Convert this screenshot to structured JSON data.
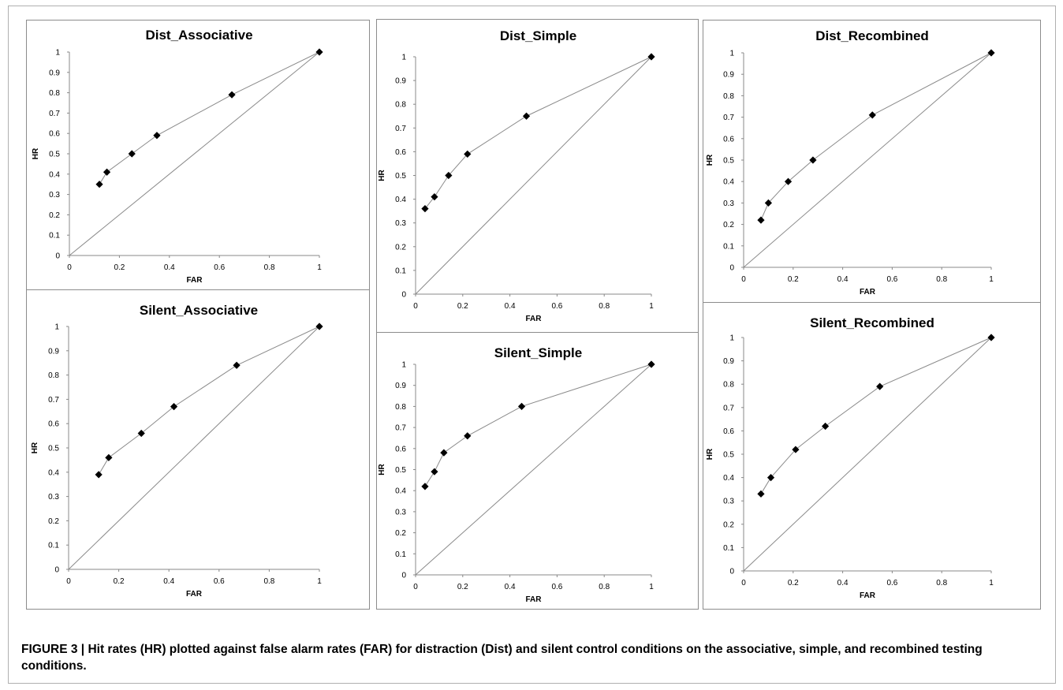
{
  "figure": {
    "caption_label": "FIGURE 3 | ",
    "caption_text": "Hit rates (HR) plotted against false alarm rates (FAR) for distraction (Dist) and silent control conditions on the associative, simple, and recombined testing conditions."
  },
  "chart_data": [
    {
      "type": "line",
      "title": "Dist_Associative",
      "xlabel": "FAR",
      "ylabel": "HR",
      "xlim": [
        0,
        1
      ],
      "ylim": [
        0,
        1
      ],
      "xticks": [
        "0",
        "0.2",
        "0.4",
        "0.6",
        "0.8",
        "1"
      ],
      "yticks": [
        "0",
        "0.1",
        "0.2",
        "0.3",
        "0.4",
        "0.5",
        "0.6",
        "0.7",
        "0.8",
        "0.9",
        "1"
      ],
      "grid": false,
      "x": [
        0.12,
        0.15,
        0.25,
        0.35,
        0.65,
        1
      ],
      "y": [
        0.35,
        0.41,
        0.5,
        0.59,
        0.79,
        1
      ],
      "reference_line": [
        [
          0,
          0
        ],
        [
          1,
          1
        ]
      ],
      "marker": "diamond"
    },
    {
      "type": "line",
      "title": "Dist_Simple",
      "xlabel": "FAR",
      "ylabel": "HR",
      "xlim": [
        0,
        1
      ],
      "ylim": [
        0,
        1
      ],
      "xticks": [
        "0",
        "0.2",
        "0.4",
        "0.6",
        "0.8",
        "1"
      ],
      "yticks": [
        "0",
        "0.1",
        "0.2",
        "0.3",
        "0.4",
        "0.5",
        "0.6",
        "0.7",
        "0.8",
        "0.9",
        "1"
      ],
      "grid": false,
      "x": [
        0.04,
        0.08,
        0.14,
        0.22,
        0.47,
        1
      ],
      "y": [
        0.36,
        0.41,
        0.5,
        0.59,
        0.75,
        1
      ],
      "reference_line": [
        [
          0,
          0
        ],
        [
          1,
          1
        ]
      ],
      "marker": "diamond"
    },
    {
      "type": "line",
      "title": "Dist_Recombined",
      "xlabel": "FAR",
      "ylabel": "HR",
      "xlim": [
        0,
        1
      ],
      "ylim": [
        0,
        1
      ],
      "xticks": [
        "0",
        "0.2",
        "0.4",
        "0.6",
        "0.8",
        "1"
      ],
      "yticks": [
        "0",
        "0.1",
        "0.2",
        "0.3",
        "0.4",
        "0.5",
        "0.6",
        "0.7",
        "0.8",
        "0.9",
        "1"
      ],
      "grid": false,
      "x": [
        0.07,
        0.1,
        0.18,
        0.28,
        0.52,
        1
      ],
      "y": [
        0.22,
        0.3,
        0.4,
        0.5,
        0.71,
        1
      ],
      "reference_line": [
        [
          0,
          0
        ],
        [
          1,
          1
        ]
      ],
      "marker": "diamond"
    },
    {
      "type": "line",
      "title": "Silent_Associative",
      "xlabel": "FAR",
      "ylabel": "HR",
      "xlim": [
        0,
        1
      ],
      "ylim": [
        0,
        1
      ],
      "xticks": [
        "0",
        "0.2",
        "0.4",
        "0.6",
        "0.8",
        "1"
      ],
      "yticks": [
        "0",
        "0.1",
        "0.2",
        "0.3",
        "0.4",
        "0.5",
        "0.6",
        "0.7",
        "0.8",
        "0.9",
        "1"
      ],
      "grid": false,
      "x": [
        0.12,
        0.16,
        0.29,
        0.42,
        0.67,
        1
      ],
      "y": [
        0.39,
        0.46,
        0.56,
        0.67,
        0.84,
        1
      ],
      "reference_line": [
        [
          0,
          0
        ],
        [
          1,
          1
        ]
      ],
      "marker": "diamond"
    },
    {
      "type": "line",
      "title": "Silent_Simple",
      "xlabel": "FAR",
      "ylabel": "HR",
      "xlim": [
        0,
        1
      ],
      "ylim": [
        0,
        1
      ],
      "xticks": [
        "0",
        "0.2",
        "0.4",
        "0.6",
        "0.8",
        "1"
      ],
      "yticks": [
        "0",
        "0.1",
        "0.2",
        "0.3",
        "0.4",
        "0.5",
        "0.6",
        "0.7",
        "0.8",
        "0.9",
        "1"
      ],
      "grid": false,
      "x": [
        0.04,
        0.08,
        0.12,
        0.22,
        0.45,
        1
      ],
      "y": [
        0.42,
        0.49,
        0.58,
        0.66,
        0.8,
        1
      ],
      "reference_line": [
        [
          0,
          0
        ],
        [
          1,
          1
        ]
      ],
      "marker": "diamond"
    },
    {
      "type": "line",
      "title": "Silent_Recombined",
      "xlabel": "FAR",
      "ylabel": "HR",
      "xlim": [
        0,
        1
      ],
      "ylim": [
        0,
        1
      ],
      "xticks": [
        "0",
        "0.2",
        "0.4",
        "0.6",
        "0.8",
        "1"
      ],
      "yticks": [
        "0",
        "0.1",
        "0.2",
        "0.3",
        "0.4",
        "0.5",
        "0.6",
        "0.7",
        "0.8",
        "0.9",
        "1"
      ],
      "grid": false,
      "x": [
        0.07,
        0.11,
        0.21,
        0.33,
        0.55,
        1
      ],
      "y": [
        0.33,
        0.4,
        0.52,
        0.62,
        0.79,
        1
      ],
      "reference_line": [
        [
          0,
          0
        ],
        [
          1,
          1
        ]
      ],
      "marker": "diamond"
    }
  ]
}
